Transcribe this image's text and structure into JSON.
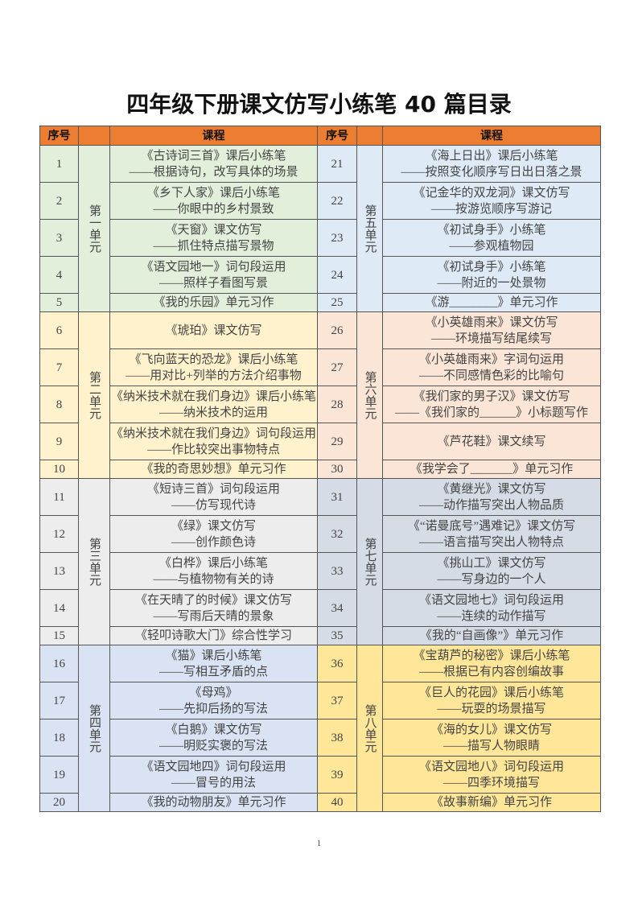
{
  "title": "四年级下册课文仿写小练笔 40 篇目录",
  "header": {
    "num": "序号",
    "unit": "",
    "course": "课程"
  },
  "colors": {
    "header": "#ed7d31"
  },
  "left_units": [
    {
      "label": "第一单元",
      "color": "#e2efda",
      "lessons": [
        {
          "num": "1",
          "lines": [
            "《古诗词三首》课后小练笔",
            "——根据诗句，改写具体的场景"
          ]
        },
        {
          "num": "2",
          "lines": [
            "《乡下人家》课后小练笔",
            "——你眼中的乡村景致"
          ]
        },
        {
          "num": "3",
          "lines": [
            "《天窗》课文仿写",
            "——抓住特点描写景物"
          ]
        },
        {
          "num": "4",
          "lines": [
            "《语文园地一》词句段运用",
            "——照样子看图写景"
          ]
        },
        {
          "num": "5",
          "lines": [
            "《我的乐园》单元习作"
          ]
        }
      ]
    },
    {
      "label": "第二单元",
      "color": "#fff2cc",
      "lessons": [
        {
          "num": "6",
          "lines": [
            "《琥珀》课文仿写"
          ]
        },
        {
          "num": "7",
          "lines": [
            "《飞向蓝天的恐龙》课后小练笔",
            "——用对比+列举的方法介绍事物"
          ]
        },
        {
          "num": "8",
          "lines": [
            "《纳米技术就在我们身边》课后小练笔",
            "——纳米技术的运用"
          ]
        },
        {
          "num": "9",
          "lines": [
            "《纳米技术就在我们身边》词句段运用",
            "——作比较突出事物特点"
          ]
        },
        {
          "num": "10",
          "lines": [
            "《我的奇思妙想》单元习作"
          ]
        }
      ]
    },
    {
      "label": "第三单元",
      "color": "#ededed",
      "lessons": [
        {
          "num": "11",
          "lines": [
            "《短诗三首》词句段运用",
            "——仿写现代诗"
          ]
        },
        {
          "num": "12",
          "lines": [
            "《绿》课文仿写",
            "——创作颜色诗"
          ]
        },
        {
          "num": "13",
          "lines": [
            "《白桦》课后小练笔",
            "——与植物物有关的诗"
          ]
        },
        {
          "num": "14",
          "lines": [
            "《在天晴了的时候》课文仿写",
            "——写雨后天晴的景象"
          ]
        },
        {
          "num": "15",
          "lines": [
            "《轻叩诗歌大门》综合性学习"
          ]
        }
      ]
    },
    {
      "label": "第四单元",
      "color": "#dae3f3",
      "lessons": [
        {
          "num": "16",
          "lines": [
            "《猫》课后小练笔",
            "——写相互矛盾的点"
          ]
        },
        {
          "num": "17",
          "lines": [
            "《母鸡》",
            "——先抑后扬的写法"
          ]
        },
        {
          "num": "18",
          "lines": [
            "《白鹅》课文仿写",
            "——明贬实褒的写法"
          ]
        },
        {
          "num": "19",
          "lines": [
            "《语文园地四》词句段运用",
            "——冒号的用法"
          ]
        },
        {
          "num": "20",
          "lines": [
            "《我的动物朋友》单元习作"
          ]
        }
      ]
    }
  ],
  "right_units": [
    {
      "label": "第五单元",
      "color": "#deebf7",
      "lessons": [
        {
          "num": "21",
          "lines": [
            "《海上日出》课后小练笔",
            "——按照变化顺序写日出日落之景"
          ]
        },
        {
          "num": "22",
          "lines": [
            "《记金华的双龙洞》课文仿写",
            "——按游览顺序写游记"
          ]
        },
        {
          "num": "23",
          "lines": [
            "《初试身手》小练笔",
            "——参观植物园"
          ]
        },
        {
          "num": "24",
          "lines": [
            "《初试身手》小练笔",
            "——附近的一处景物"
          ]
        },
        {
          "num": "25",
          "lines": [
            "《游________》单元习作"
          ]
        }
      ]
    },
    {
      "label": "第六单元",
      "color": "#fbe5d6",
      "lessons": [
        {
          "num": "26",
          "lines": [
            "《小英雄雨来》课文仿写",
            "——环境描写结尾续写"
          ]
        },
        {
          "num": "27",
          "lines": [
            "《小英雄雨来》字词句运用",
            "——不同感情色彩的比喻句"
          ]
        },
        {
          "num": "28",
          "lines": [
            "《我们家的男子汉》课文仿写",
            "——《我们家的______》小标题写作"
          ]
        },
        {
          "num": "29",
          "lines": [
            "《芦花鞋》课文续写"
          ]
        },
        {
          "num": "30",
          "lines": [
            "《我学会了_______》单元习作"
          ]
        }
      ]
    },
    {
      "label": "第七单元",
      "color": "#d6dce5",
      "lessons": [
        {
          "num": "31",
          "lines": [
            "《黄继光》课文仿写",
            "——动作描写突出人物品质"
          ]
        },
        {
          "num": "32",
          "lines": [
            "《“诺曼底号”遇难记》课文仿写",
            "——语言描写突出人物特点"
          ]
        },
        {
          "num": "33",
          "lines": [
            "《挑山工》课文仿写",
            "——写身边的一个人"
          ]
        },
        {
          "num": "34",
          "lines": [
            "《语文园地七》词句段运用",
            "——连续的动作描写"
          ]
        },
        {
          "num": "35",
          "lines": [
            "《我的“自画像”》单元习作"
          ]
        }
      ]
    },
    {
      "label": "第八单元",
      "color": "#ffe699",
      "lessons": [
        {
          "num": "36",
          "lines": [
            "《宝葫芦的秘密》课后小练笔",
            "——根据已有内容创编故事"
          ]
        },
        {
          "num": "37",
          "lines": [
            "《巨人的花园》课后小练笔",
            "——玩耍的场景描写"
          ]
        },
        {
          "num": "38",
          "lines": [
            "《海的女儿》课文仿写",
            "——描写人物眼睛"
          ]
        },
        {
          "num": "39",
          "lines": [
            "《语文园地八》词句段运用",
            "——四季环境描写"
          ]
        },
        {
          "num": "40",
          "lines": [
            "《故事新编》单元习作"
          ]
        }
      ]
    }
  ],
  "page_number": "1"
}
